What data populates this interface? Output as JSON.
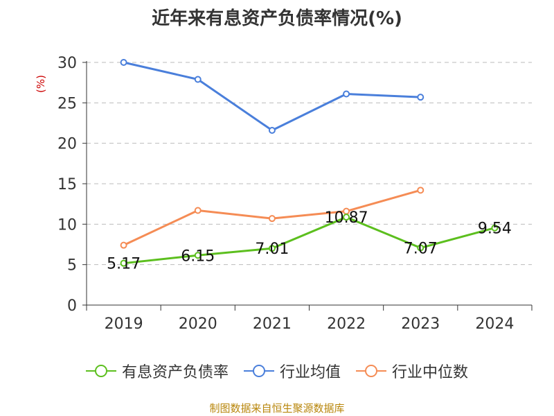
{
  "title": "近年来有息资产负债率情况(%)",
  "unit_label": "(%)",
  "source": "制图数据来自恒生聚源数据库",
  "colors": {
    "series_debt_ratio": "#5cbf1e",
    "series_industry_avg": "#4a7fdb",
    "series_industry_median": "#f58c55",
    "grid": "#bbbbbb",
    "axis": "#333333",
    "unit": "#cc0000",
    "source": "#b8860b"
  },
  "chart_data": {
    "type": "line",
    "categories": [
      "2019",
      "2020",
      "2021",
      "2022",
      "2023",
      "2024"
    ],
    "ylim": [
      0,
      30
    ],
    "yticks": [
      "0",
      "5",
      "10",
      "15",
      "20",
      "25",
      "30"
    ],
    "grid": true,
    "legend_position": "bottom",
    "series": [
      {
        "name": "有息资产负债率",
        "color": "#5cbf1e",
        "values": [
          5.17,
          6.15,
          7.01,
          10.87,
          7.07,
          9.54
        ],
        "labels": [
          "5.17",
          "6.15",
          "7.01",
          "10.87",
          "7.07",
          "9.54"
        ]
      },
      {
        "name": "行业均值",
        "color": "#4a7fdb",
        "values": [
          30.0,
          27.9,
          21.6,
          26.1,
          25.7,
          null
        ]
      },
      {
        "name": "行业中位数",
        "color": "#f58c55",
        "values": [
          7.4,
          11.7,
          10.7,
          11.6,
          14.2,
          null
        ]
      }
    ]
  }
}
